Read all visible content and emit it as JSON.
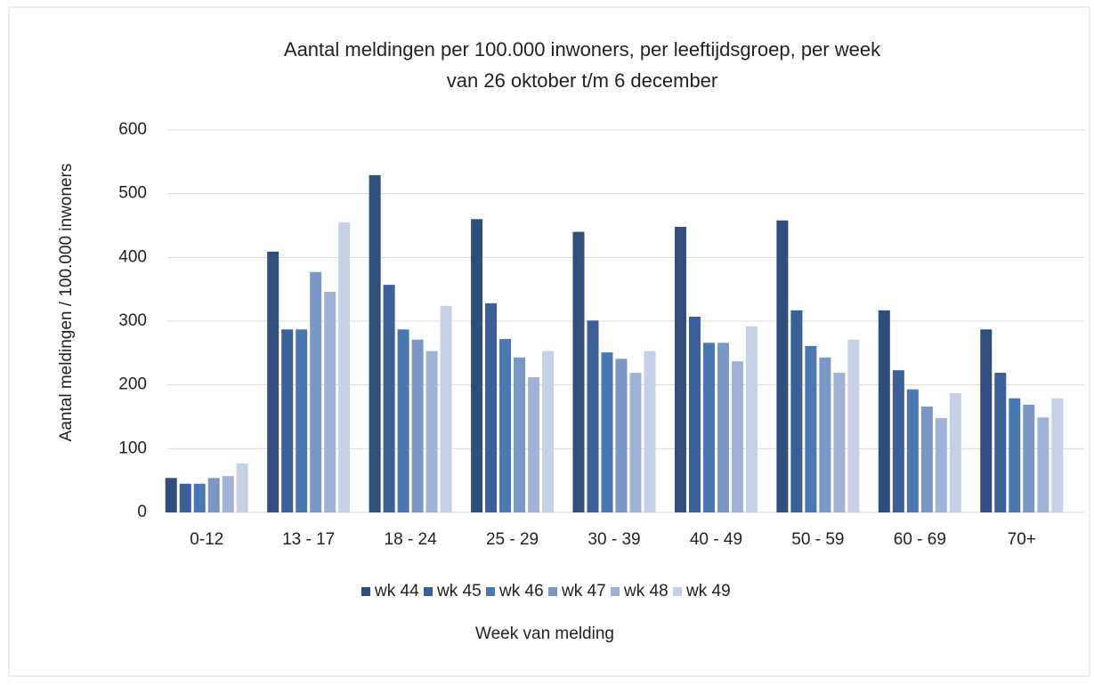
{
  "chart_data": {
    "type": "bar",
    "title": "Aantal meldingen per 100.000 inwoners, per leeftijdsgroep, per week",
    "subtitle": "van 26 oktober t/m 6 december",
    "x_label": "Week van melding",
    "y_label": "Aantal meldingen / 100.000 inwoners",
    "categories": [
      "0-12",
      "13 - 17",
      "18 - 24",
      "25 - 29",
      "30 - 39",
      "40 - 49",
      "50 - 59",
      "60 - 69",
      "70+"
    ],
    "series": [
      {
        "name": "wk 44",
        "color": "#2f4e7c",
        "values": [
          54,
          409,
          529,
          460,
          440,
          448,
          458,
          317,
          287
        ]
      },
      {
        "name": "wk 45",
        "color": "#3b6097",
        "values": [
          45,
          287,
          357,
          328,
          301,
          307,
          317,
          223,
          219
        ]
      },
      {
        "name": "wk 46",
        "color": "#4c78b2",
        "values": [
          45,
          287,
          287,
          272,
          251,
          266,
          261,
          193,
          179
        ]
      },
      {
        "name": "wk 47",
        "color": "#7b97c5",
        "values": [
          54,
          377,
          271,
          243,
          241,
          266,
          243,
          166,
          169
        ]
      },
      {
        "name": "wk 48",
        "color": "#a0b3d7",
        "values": [
          57,
          346,
          253,
          212,
          219,
          237,
          219,
          148,
          149
        ]
      },
      {
        "name": "wk 49",
        "color": "#c6d1e7",
        "values": [
          77,
          455,
          324,
          253,
          253,
          292,
          271,
          187,
          179
        ]
      }
    ],
    "ylim": [
      0,
      600
    ],
    "yticks": [
      0,
      100,
      200,
      300,
      400,
      500,
      600
    ],
    "grid": true,
    "legend": "bottom"
  }
}
